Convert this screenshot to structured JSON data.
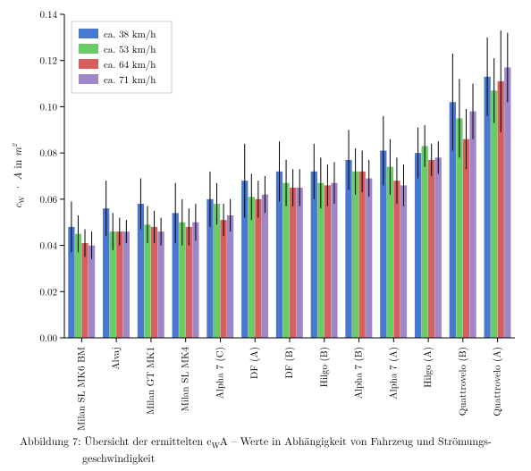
{
  "chart": {
    "type": "bar_grouped_with_error",
    "background_color": "#ffffff",
    "plot_bg_color": "#ffffff",
    "ylabel": "c_W · A in m²",
    "ylabel_html": "c<tspan font-size='8' baseline-shift='-2'>W</tspan> · A in m<tspan font-size='8' baseline-shift='4'>2</tspan>",
    "ylim": [
      0.0,
      0.14
    ],
    "yticks": [
      0.0,
      0.02,
      0.04,
      0.06,
      0.08,
      0.1,
      0.12,
      0.14
    ],
    "ytick_labels": [
      "0.00",
      "0.02",
      "0.04",
      "0.06",
      "0.08",
      "0.10",
      "0.12",
      "0.14"
    ],
    "label_fontsize": 12,
    "tick_fontsize": 11,
    "categories": [
      "Milan SL MK6 BM",
      "Alvaj",
      "Milan GT MK1",
      "Milan SL MK4",
      "Alpha 7 (C)",
      "DF (A)",
      "DF (B)",
      "Hilgo (B)",
      "Alpha 7 (B)",
      "Alpha 7 (A)",
      "Hilgo (A)",
      "Quattrovelo (B)",
      "Quattrovelo (A)"
    ],
    "series": [
      {
        "name": "ca. 38 km/h",
        "color": "#4878cf",
        "values": [
          0.048,
          0.056,
          0.058,
          0.054,
          0.06,
          0.068,
          0.072,
          0.072,
          0.077,
          0.081,
          0.08,
          0.102,
          0.113
        ],
        "err": [
          0.011,
          0.012,
          0.011,
          0.013,
          0.012,
          0.016,
          0.013,
          0.012,
          0.013,
          0.015,
          0.011,
          0.021,
          0.017
        ]
      },
      {
        "name": "ca. 53 km/h",
        "color": "#6acc65",
        "values": [
          0.045,
          0.046,
          0.049,
          0.05,
          0.058,
          0.061,
          0.067,
          0.067,
          0.072,
          0.074,
          0.083,
          0.095,
          0.107
        ],
        "err": [
          0.008,
          0.008,
          0.008,
          0.01,
          0.009,
          0.01,
          0.01,
          0.011,
          0.01,
          0.012,
          0.009,
          0.017,
          0.014
        ]
      },
      {
        "name": "ca. 64 km/h",
        "color": "#d65f5f",
        "values": [
          0.041,
          0.046,
          0.048,
          0.048,
          0.051,
          0.06,
          0.065,
          0.066,
          0.072,
          0.068,
          0.077,
          0.086,
          0.111
        ],
        "err": [
          0.006,
          0.006,
          0.007,
          0.008,
          0.007,
          0.008,
          0.008,
          0.009,
          0.009,
          0.01,
          0.007,
          0.013,
          0.022
        ]
      },
      {
        "name": "ca. 71 km/h",
        "color": "#9e86c8",
        "values": [
          0.04,
          0.046,
          0.046,
          0.05,
          0.053,
          0.062,
          0.065,
          0.067,
          0.069,
          0.066,
          0.078,
          0.098,
          0.117
        ],
        "err": [
          0.006,
          0.005,
          0.006,
          0.008,
          0.007,
          0.008,
          0.008,
          0.009,
          0.008,
          0.009,
          0.007,
          0.012,
          0.015
        ]
      }
    ],
    "bar_group_gap": 0.22,
    "error_color": "#000000",
    "error_linewidth": 1,
    "legend": {
      "position": "upper-left",
      "frame": true,
      "frame_color": "#cccccc",
      "bg_color": "#ffffff"
    },
    "caption_prefix": "Abbildung 7: ",
    "caption_line1": "Übersicht der ermittelten c",
    "caption_sub": "W",
    "caption_line1b": "A – Werte in Abhängigkeit von Fahrzeug und Strömungs-",
    "caption_line2": "geschwindigkeit"
  }
}
